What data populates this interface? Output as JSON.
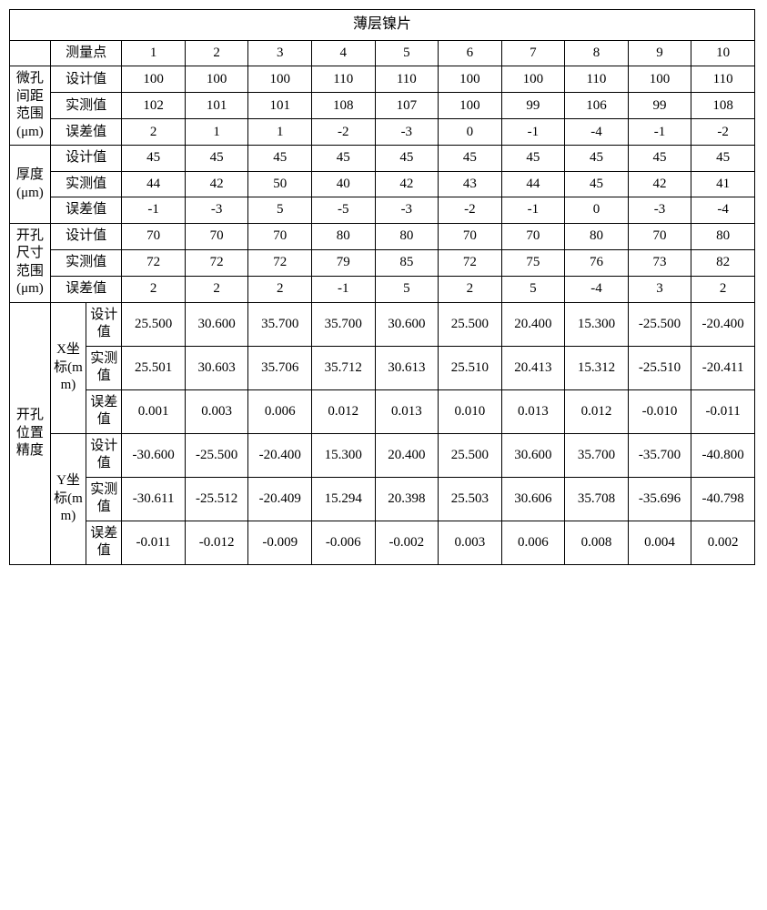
{
  "title": "薄层镍片",
  "header_label": "测量点",
  "cols": [
    "1",
    "2",
    "3",
    "4",
    "5",
    "6",
    "7",
    "8",
    "9",
    "10"
  ],
  "g1": {
    "name": "微孔间距范围(μm)",
    "r1_label": "设计值",
    "r1": [
      "100",
      "100",
      "100",
      "110",
      "110",
      "100",
      "100",
      "110",
      "100",
      "110"
    ],
    "r2_label": "实测值",
    "r2": [
      "102",
      "101",
      "101",
      "108",
      "107",
      "100",
      "99",
      "106",
      "99",
      "108"
    ],
    "r3_label": "误差值",
    "r3": [
      "2",
      "1",
      "1",
      "-2",
      "-3",
      "0",
      "-1",
      "-4",
      "-1",
      "-2"
    ]
  },
  "g2": {
    "name": "厚度(μm)",
    "r1_label": "设计值",
    "r1": [
      "45",
      "45",
      "45",
      "45",
      "45",
      "45",
      "45",
      "45",
      "45",
      "45"
    ],
    "r2_label": "实测值",
    "r2": [
      "44",
      "42",
      "50",
      "40",
      "42",
      "43",
      "44",
      "45",
      "42",
      "41"
    ],
    "r3_label": "误差值",
    "r3": [
      "-1",
      "-3",
      "5",
      "-5",
      "-3",
      "-2",
      "-1",
      "0",
      "-3",
      "-4"
    ]
  },
  "g3": {
    "name": "开孔尺寸范围(μm)",
    "r1_label": "设计值",
    "r1": [
      "70",
      "70",
      "70",
      "80",
      "80",
      "70",
      "70",
      "80",
      "70",
      "80"
    ],
    "r2_label": "实测值",
    "r2": [
      "72",
      "72",
      "72",
      "79",
      "85",
      "72",
      "75",
      "76",
      "73",
      "82"
    ],
    "r3_label": "误差值",
    "r3": [
      "2",
      "2",
      "2",
      "-1",
      "5",
      "2",
      "5",
      "-4",
      "3",
      "2"
    ]
  },
  "g4": {
    "name": "开孔位置精度",
    "x_name": "X坐标(mm)",
    "y_name": "Y坐标(mm)",
    "x": {
      "r1_label": "设计值",
      "r1": [
        "25.500",
        "30.600",
        "35.700",
        "35.700",
        "30.600",
        "25.500",
        "20.400",
        "15.300",
        "-25.500",
        "-20.400"
      ],
      "r2_label": "实测值",
      "r2": [
        "25.501",
        "30.603",
        "35.706",
        "35.712",
        "30.613",
        "25.510",
        "20.413",
        "15.312",
        "-25.510",
        "-20.411"
      ],
      "r3_label": "误差值",
      "r3": [
        "0.001",
        "0.003",
        "0.006",
        "0.012",
        "0.013",
        "0.010",
        "0.013",
        "0.012",
        "-0.010",
        "-0.011"
      ]
    },
    "y": {
      "r1_label": "设计值",
      "r1": [
        "-30.600",
        "-25.500",
        "-20.400",
        "15.300",
        "20.400",
        "25.500",
        "30.600",
        "35.700",
        "-35.700",
        "-40.800"
      ],
      "r2_label": "实测值",
      "r2": [
        "-30.611",
        "-25.512",
        "-20.409",
        "15.294",
        "20.398",
        "25.503",
        "30.606",
        "35.708",
        "-35.696",
        "-40.798"
      ],
      "r3_label": "误差值",
      "r3": [
        "-0.011",
        "-0.012",
        "-0.009",
        "-0.006",
        "-0.002",
        "0.003",
        "0.006",
        "0.008",
        "0.004",
        "0.002"
      ]
    }
  }
}
